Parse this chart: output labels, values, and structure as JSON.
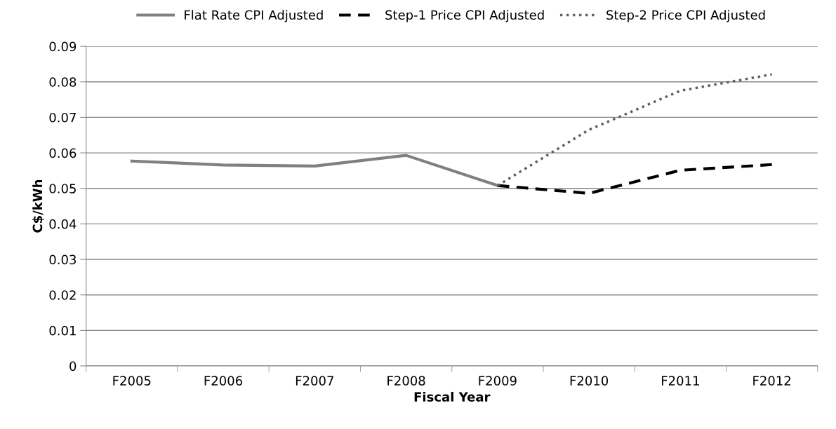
{
  "chart_data": {
    "type": "line",
    "xlabel": "Fiscal Year",
    "ylabel": "C$/kWh",
    "categories": [
      "F2005",
      "F2006",
      "F2007",
      "F2008",
      "F2009",
      "F2010",
      "F2011",
      "F2012"
    ],
    "series": [
      {
        "name": "Flat Rate CPI Adjusted",
        "color": "#808080",
        "line_style": "solid",
        "values": [
          0.0577,
          0.0566,
          0.0563,
          0.0593,
          0.0508,
          null,
          null,
          null
        ]
      },
      {
        "name": "Step-1 Price CPI Adjusted",
        "color": "#000000",
        "line_style": "dashed",
        "values": [
          null,
          null,
          null,
          null,
          0.0508,
          0.0486,
          0.0551,
          0.0567
        ]
      },
      {
        "name": "Step-2 Price CPI Adjusted",
        "color": "#606060",
        "line_style": "dotted",
        "values": [
          null,
          null,
          null,
          null,
          0.0508,
          0.0665,
          0.0775,
          0.0821
        ]
      }
    ],
    "ylim": [
      0,
      0.09
    ],
    "yticks": [
      0,
      0.01,
      0.02,
      0.03,
      0.04,
      0.05,
      0.06,
      0.07,
      0.08,
      0.09
    ],
    "grid": "y",
    "legend": "top",
    "marker": "none"
  }
}
